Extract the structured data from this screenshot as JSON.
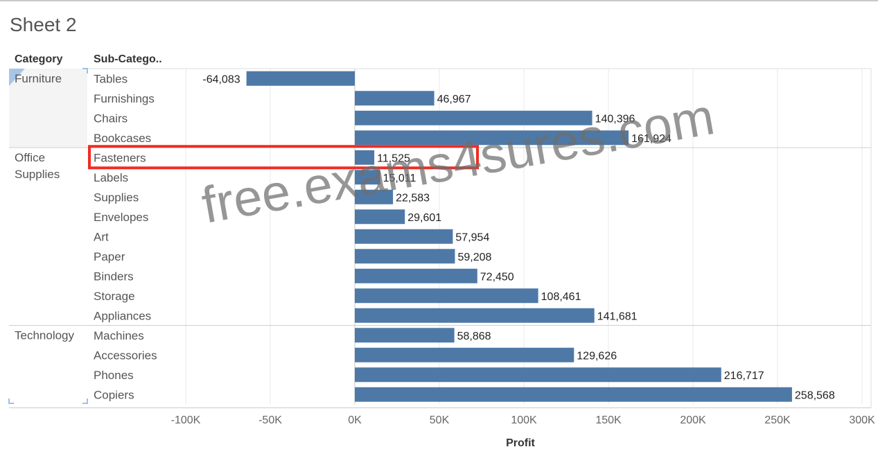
{
  "sheet": {
    "title": "Sheet 2"
  },
  "headers": {
    "category": "Category",
    "subcategory": "Sub-Catego.."
  },
  "watermark": "free.exams4sures.com",
  "colors": {
    "bar": "#4e79a7",
    "highlight": "#ee2d24",
    "grid": "#e8e8e8",
    "zero_line": "#c8c8c8"
  },
  "highlight": {
    "subcategory": "Fasteners"
  },
  "chart_data": {
    "type": "bar",
    "orientation": "horizontal",
    "xlabel": "Profit",
    "xlim": [
      -110000,
      300000
    ],
    "x_ticks": [
      -100000,
      -50000,
      0,
      50000,
      100000,
      150000,
      200000,
      250000,
      300000
    ],
    "x_tick_labels": [
      "-100K",
      "-50K",
      "0K",
      "50K",
      "100K",
      "150K",
      "200K",
      "250K",
      "300K"
    ],
    "grid": true,
    "groups": [
      {
        "category": "Furniture",
        "rows": [
          {
            "subcategory": "Tables",
            "value": -64083,
            "label": "-64,083"
          },
          {
            "subcategory": "Furnishings",
            "value": 46967,
            "label": "46,967"
          },
          {
            "subcategory": "Chairs",
            "value": 140396,
            "label": "140,396"
          },
          {
            "subcategory": "Bookcases",
            "value": 161924,
            "label": "161,924"
          }
        ]
      },
      {
        "category": "Office Supplies",
        "rows": [
          {
            "subcategory": "Fasteners",
            "value": 11525,
            "label": "11,525"
          },
          {
            "subcategory": "Labels",
            "value": 15011,
            "label": "15,011"
          },
          {
            "subcategory": "Supplies",
            "value": 22583,
            "label": "22,583"
          },
          {
            "subcategory": "Envelopes",
            "value": 29601,
            "label": "29,601"
          },
          {
            "subcategory": "Art",
            "value": 57954,
            "label": "57,954"
          },
          {
            "subcategory": "Paper",
            "value": 59208,
            "label": "59,208"
          },
          {
            "subcategory": "Binders",
            "value": 72450,
            "label": "72,450"
          },
          {
            "subcategory": "Storage",
            "value": 108461,
            "label": "108,461"
          },
          {
            "subcategory": "Appliances",
            "value": 141681,
            "label": "141,681"
          }
        ]
      },
      {
        "category": "Technology",
        "rows": [
          {
            "subcategory": "Machines",
            "value": 58868,
            "label": "58,868"
          },
          {
            "subcategory": "Accessories",
            "value": 129626,
            "label": "129,626"
          },
          {
            "subcategory": "Phones",
            "value": 216717,
            "label": "216,717"
          },
          {
            "subcategory": "Copiers",
            "value": 258568,
            "label": "258,568"
          }
        ]
      }
    ]
  }
}
